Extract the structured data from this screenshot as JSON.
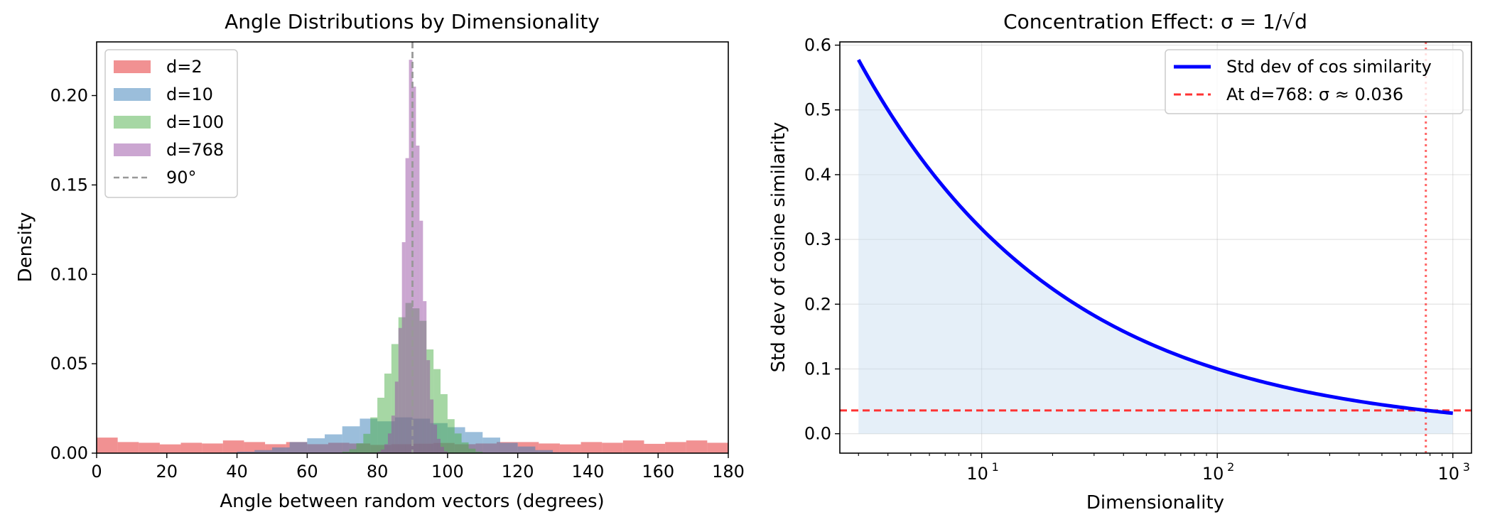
{
  "chart_data": [
    {
      "type": "histogram",
      "title": "Angle Distributions by Dimensionality",
      "xlabel": "Angle between random vectors (degrees)",
      "ylabel": "Density",
      "xlim": [
        0,
        180
      ],
      "ylim": [
        0,
        0.23
      ],
      "xticks": [
        0,
        20,
        40,
        60,
        80,
        100,
        120,
        140,
        160,
        180
      ],
      "xtick_labels": [
        "0",
        "20",
        "40",
        "60",
        "80",
        "100",
        "120",
        "140",
        "160",
        "180"
      ],
      "yticks": [
        0,
        0.05,
        0.1,
        0.15,
        0.2
      ],
      "ytick_labels": [
        "0.00",
        "0.05",
        "0.10",
        "0.15",
        "0.20"
      ],
      "reference_line": {
        "x": 90,
        "label": "90°",
        "color": "#999999",
        "style": "dashed"
      },
      "legend": {
        "location": "upper-left"
      },
      "series": [
        {
          "name": "d=2",
          "color": "#e8474a",
          "alpha": 0.6,
          "bin_edges": [
            0,
            6,
            12,
            18,
            24,
            30,
            36,
            42,
            48,
            54,
            60,
            66,
            72,
            78,
            84,
            90,
            96,
            102,
            108,
            114,
            120,
            126,
            132,
            138,
            144,
            150,
            156,
            162,
            168,
            174,
            180
          ],
          "densities": [
            0.0087,
            0.0062,
            0.0058,
            0.0049,
            0.0058,
            0.0054,
            0.0071,
            0.0062,
            0.005,
            0.0062,
            0.005,
            0.0058,
            0.0054,
            0.0046,
            0.005,
            0.0053,
            0.0057,
            0.005,
            0.0054,
            0.0062,
            0.0062,
            0.0054,
            0.0049,
            0.0062,
            0.0058,
            0.0071,
            0.0052,
            0.0062,
            0.0071,
            0.0058
          ]
        },
        {
          "name": "d=10",
          "color": "#377eb8",
          "alpha": 0.5,
          "bin_edges": [
            35,
            40,
            45,
            50,
            55,
            60,
            65,
            70,
            75,
            80,
            85,
            90,
            95,
            100,
            105,
            110,
            115,
            120,
            125,
            130,
            135
          ],
          "densities": [
            0.0003,
            0.0008,
            0.0017,
            0.0032,
            0.0062,
            0.0083,
            0.0105,
            0.015,
            0.0193,
            0.0178,
            0.02,
            0.0193,
            0.0168,
            0.0145,
            0.0118,
            0.0087,
            0.0058,
            0.0037,
            0.0017,
            0.0005
          ]
        },
        {
          "name": "d=100",
          "color": "#4daf4a",
          "alpha": 0.5,
          "bin_edges": [
            70,
            72,
            74,
            76,
            78,
            80,
            82,
            84,
            86,
            88,
            90,
            92,
            94,
            96,
            98,
            100,
            102,
            104,
            106,
            108,
            110
          ],
          "densities": [
            0.0008,
            0.0022,
            0.0055,
            0.0108,
            0.02,
            0.031,
            0.0445,
            0.061,
            0.076,
            0.084,
            0.081,
            0.074,
            0.058,
            0.047,
            0.033,
            0.019,
            0.011,
            0.006,
            0.0025,
            0.0008
          ]
        },
        {
          "name": "d=768",
          "color": "#984ea3",
          "alpha": 0.5,
          "bin_edges": [
            80,
            81,
            82,
            83,
            84,
            85,
            86,
            87,
            88,
            89,
            90,
            91,
            92,
            93,
            94,
            95,
            96,
            97,
            98,
            99,
            100
          ],
          "densities": [
            0.0008,
            0.002,
            0.005,
            0.011,
            0.021,
            0.04,
            0.07,
            0.118,
            0.165,
            0.22,
            0.205,
            0.172,
            0.13,
            0.085,
            0.052,
            0.03,
            0.016,
            0.008,
            0.0035,
            0.001
          ]
        }
      ]
    },
    {
      "type": "line",
      "title": "Concentration Effect: σ = 1/√d",
      "xlabel": "Dimensionality",
      "ylabel": "Std dev of cosine similarity",
      "xscale": "log",
      "xlim": [
        2.5,
        1200
      ],
      "ylim": [
        -0.03,
        0.605
      ],
      "xticks": [
        10,
        100,
        1000
      ],
      "xtick_labels": [
        [
          "10",
          "1"
        ],
        [
          "10",
          "2"
        ],
        [
          "10",
          "3"
        ]
      ],
      "yticks": [
        0,
        0.1,
        0.2,
        0.3,
        0.4,
        0.5,
        0.6
      ],
      "ytick_labels": [
        "0.0",
        "0.1",
        "0.2",
        "0.3",
        "0.4",
        "0.5",
        "0.6"
      ],
      "function": "1/sqrt(d)",
      "d_range": [
        3,
        1000
      ],
      "series": [
        {
          "name": "Std dev of cos similarity",
          "color": "#0000ff",
          "style": "solid",
          "x": [
            3,
            5,
            10,
            20,
            50,
            100,
            200,
            500,
            768,
            1000
          ],
          "values": [
            0.577,
            0.447,
            0.316,
            0.224,
            0.141,
            0.1,
            0.071,
            0.045,
            0.036,
            0.032
          ]
        },
        {
          "name": "At d=768: σ ≈ 0.036",
          "color": "#ff3333",
          "style": "dashed",
          "type": "hline",
          "y": 0.036
        }
      ],
      "vertical_marker": {
        "x": 768,
        "color": "#ff3333",
        "style": "dotted"
      },
      "fill": {
        "color": "#c6dbef",
        "alpha": 0.45
      },
      "grid": true,
      "legend": {
        "location": "upper-right"
      }
    }
  ]
}
